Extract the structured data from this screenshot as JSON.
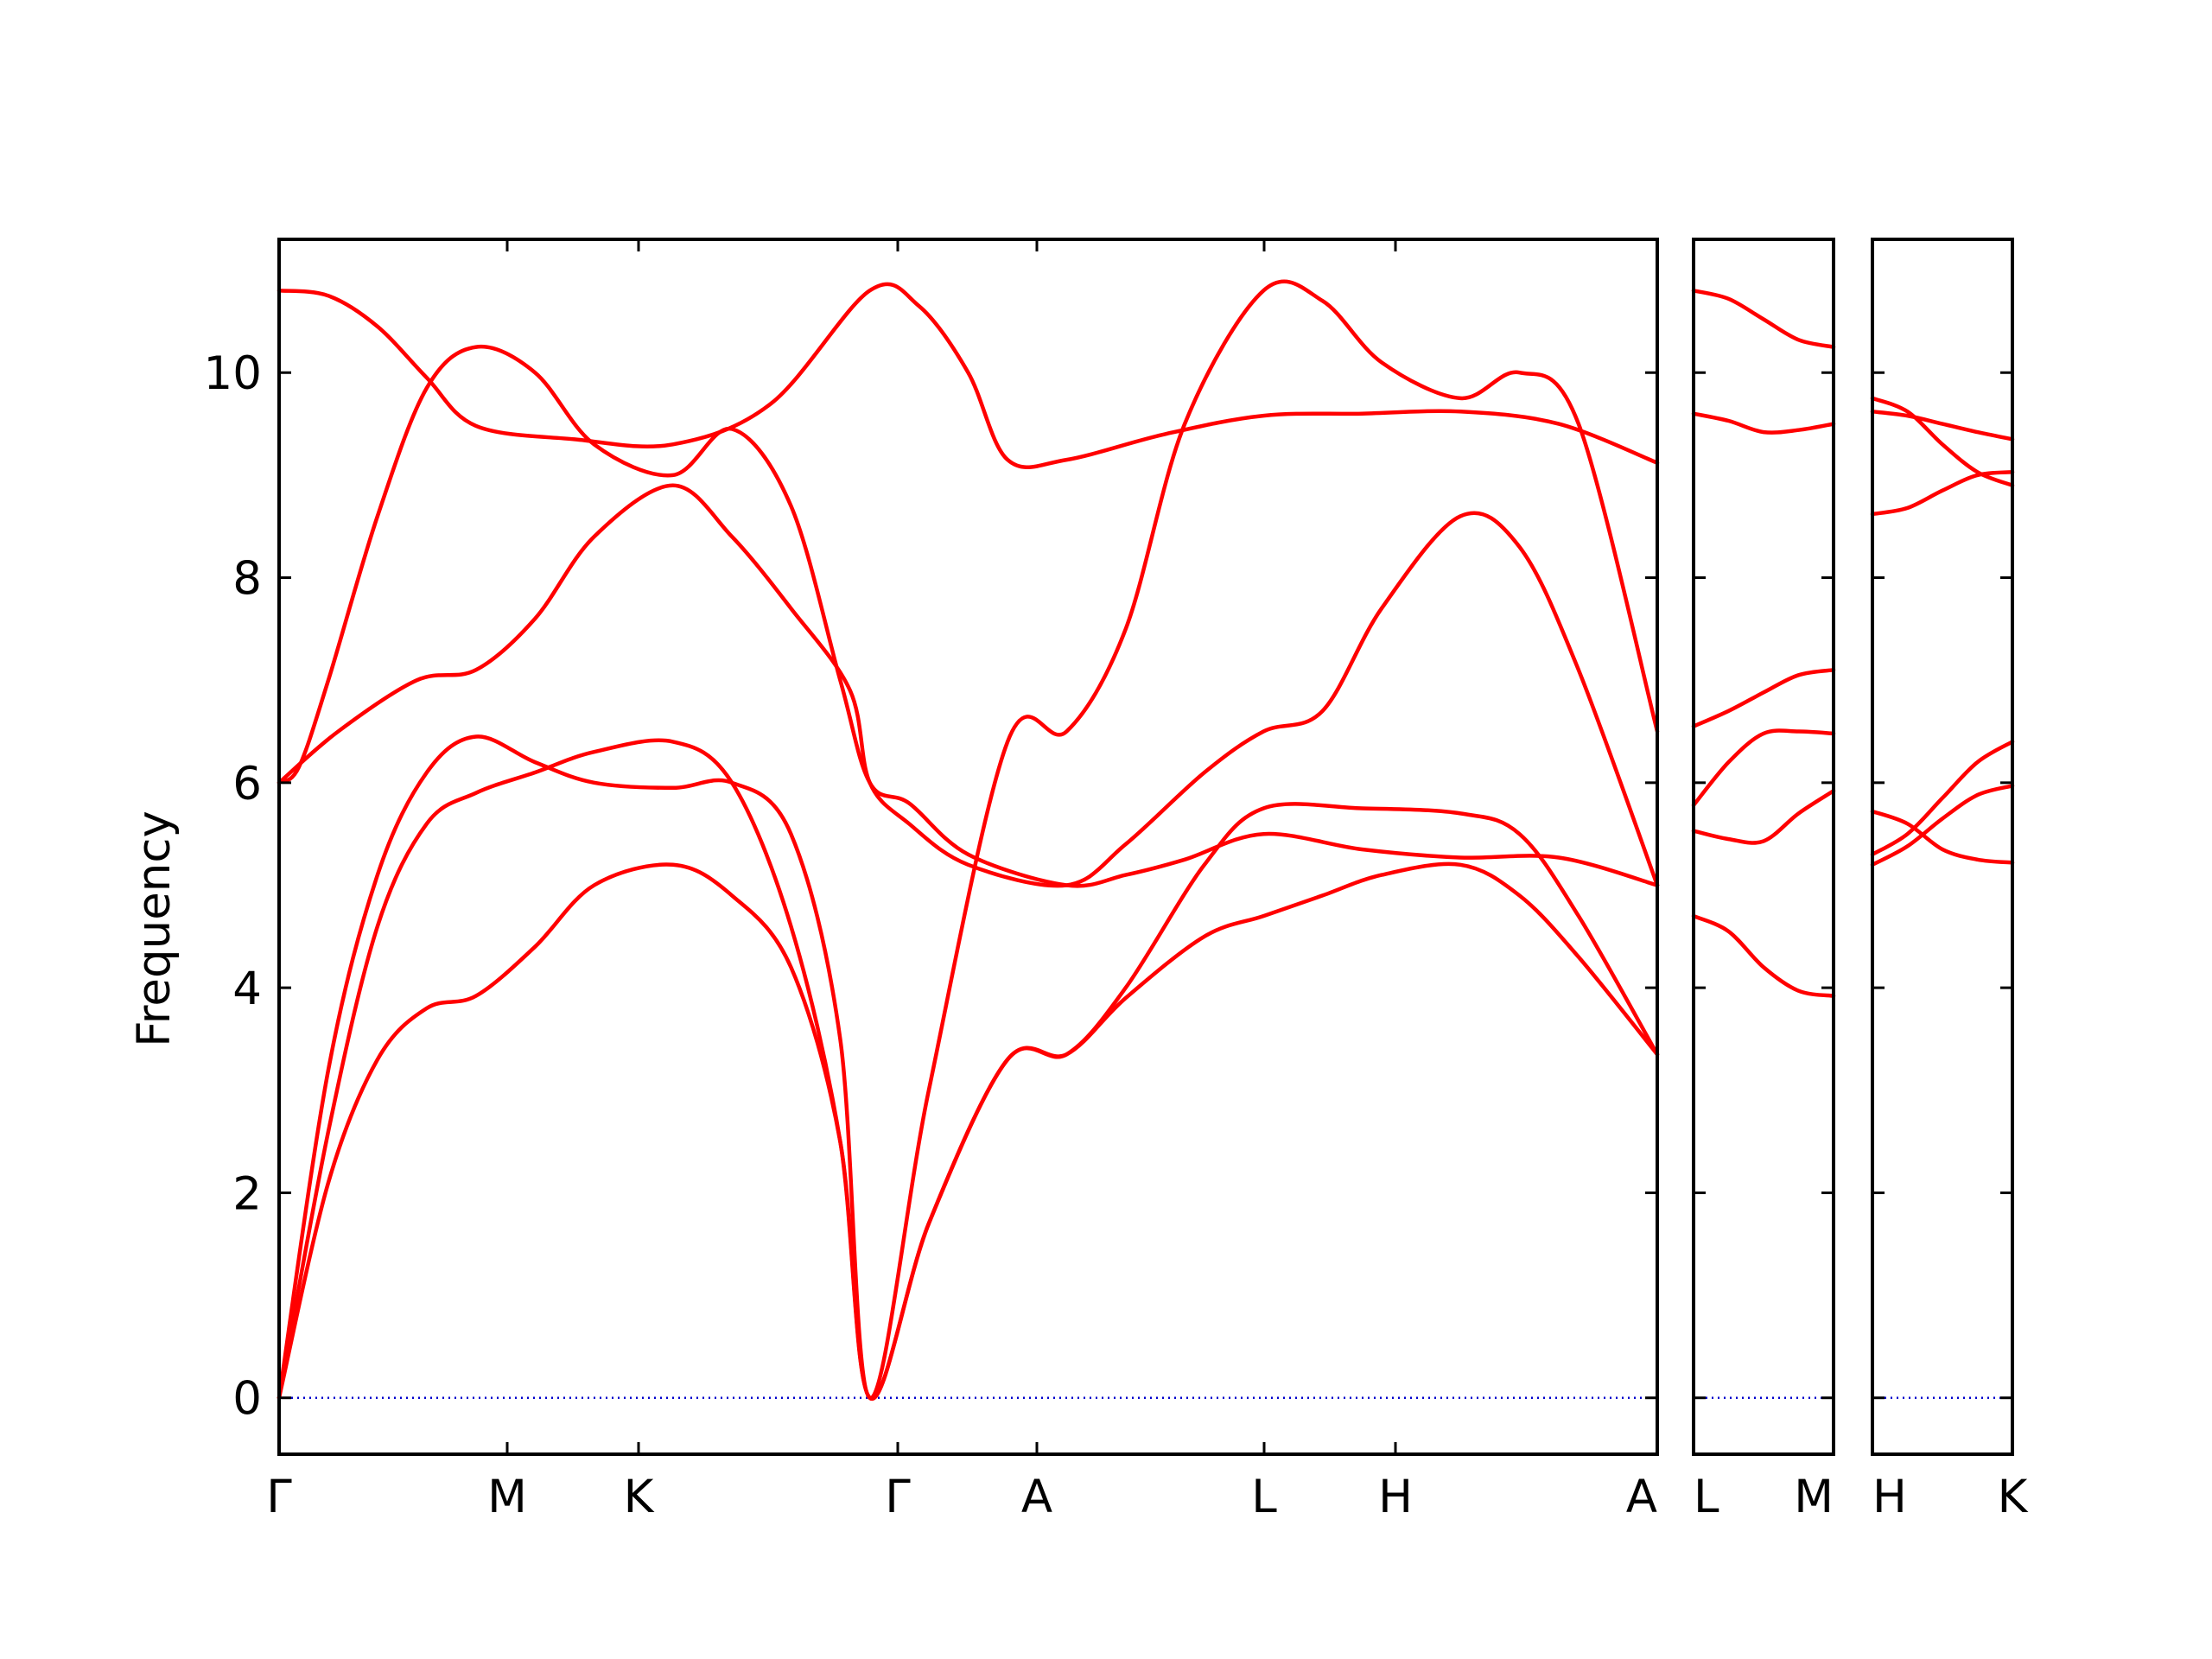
{
  "chart_data": {
    "type": "line",
    "ylabel": "Frequency",
    "ylim": [
      -0.55,
      11.3
    ],
    "y_ticks": [
      "0",
      "2",
      "4",
      "6",
      "8",
      "10"
    ],
    "grid": false,
    "colors": {
      "bands": "#ff0000",
      "zero_line": "#0000cc",
      "axes": "#000000"
    },
    "panels": [
      {
        "x_tick_labels": [
          "Γ",
          "M",
          "K",
          "Γ",
          "A",
          "L",
          "H",
          "A"
        ],
        "x_range": [
          0,
          7
        ],
        "series": [
          {
            "values": [
              [
                0,
                10.8
              ],
              [
                0.25,
                10.75
              ],
              [
                0.5,
                10.45
              ],
              [
                0.75,
                9.95
              ],
              [
                1,
                9.48
              ],
              [
                1.5,
                9.35
              ],
              [
                2,
                9.3
              ],
              [
                2.5,
                9.7
              ],
              [
                3,
                10.8
              ],
              [
                3.25,
                10.65
              ],
              [
                3.5,
                10.0
              ],
              [
                3.7,
                9.15
              ],
              [
                4,
                9.15
              ],
              [
                4.5,
                9.4
              ],
              [
                5,
                9.58
              ],
              [
                5.5,
                9.6
              ],
              [
                6,
                9.62
              ],
              [
                6.5,
                9.5
              ],
              [
                7,
                9.12
              ]
            ]
          },
          {
            "values": [
              [
                0,
                6.0
              ],
              [
                0.1,
                6.15
              ],
              [
                0.25,
                7.0
              ],
              [
                0.5,
                8.6
              ],
              [
                0.75,
                9.85
              ],
              [
                1,
                10.25
              ],
              [
                1.3,
                10.0
              ],
              [
                1.6,
                9.3
              ],
              [
                2,
                9.0
              ],
              [
                2.3,
                9.45
              ],
              [
                2.6,
                8.7
              ],
              [
                2.85,
                7.0
              ],
              [
                3,
                6.0
              ],
              [
                3.2,
                5.8
              ],
              [
                3.5,
                5.3
              ],
              [
                4,
                5.0
              ],
              [
                4.3,
                5.1
              ],
              [
                4.6,
                5.25
              ],
              [
                5,
                5.5
              ],
              [
                5.5,
                5.35
              ],
              [
                6,
                5.27
              ],
              [
                6.5,
                5.27
              ],
              [
                7,
                5.0
              ]
            ]
          },
          {
            "values": [
              [
                0,
                6.0
              ],
              [
                0.3,
                6.5
              ],
              [
                0.7,
                7.0
              ],
              [
                1,
                7.1
              ],
              [
                1.3,
                7.6
              ],
              [
                1.6,
                8.4
              ],
              [
                2,
                8.9
              ],
              [
                2.3,
                8.4
              ],
              [
                2.6,
                7.7
              ],
              [
                2.9,
                6.9
              ],
              [
                3,
                6.0
              ],
              [
                3.2,
                5.6
              ],
              [
                3.5,
                5.2
              ],
              [
                4,
                5.0
              ],
              [
                4.3,
                5.4
              ],
              [
                4.7,
                6.1
              ],
              [
                5,
                6.5
              ],
              [
                5.3,
                6.7
              ],
              [
                5.6,
                7.7
              ],
              [
                6,
                8.6
              ],
              [
                6.3,
                8.3
              ],
              [
                6.6,
                7.1
              ],
              [
                7,
                5.0
              ]
            ]
          },
          {
            "values": [
              [
                0,
                0
              ],
              [
                0.25,
                3.2
              ],
              [
                0.5,
                5.1
              ],
              [
                0.75,
                6.1
              ],
              [
                1,
                6.45
              ],
              [
                1.3,
                6.2
              ],
              [
                1.6,
                6.0
              ],
              [
                2,
                5.95
              ],
              [
                2.3,
                6.0
              ],
              [
                2.6,
                5.5
              ],
              [
                2.85,
                3.5
              ],
              [
                3,
                0
              ],
              [
                3.3,
                3.0
              ],
              [
                3.7,
                6.4
              ],
              [
                4,
                6.5
              ],
              [
                4.3,
                7.5
              ],
              [
                4.6,
                9.5
              ],
              [
                5,
                10.8
              ],
              [
                5.3,
                10.7
              ],
              [
                5.6,
                10.1
              ],
              [
                6,
                9.75
              ],
              [
                6.3,
                10.0
              ],
              [
                6.6,
                9.5
              ],
              [
                7,
                6.5
              ]
            ]
          },
          {
            "values": [
              [
                0,
                0
              ],
              [
                0.25,
                2.6
              ],
              [
                0.5,
                4.6
              ],
              [
                0.75,
                5.6
              ],
              [
                1,
                5.9
              ],
              [
                1.3,
                6.1
              ],
              [
                1.6,
                6.3
              ],
              [
                2,
                6.4
              ],
              [
                2.3,
                6.0
              ],
              [
                2.6,
                4.6
              ],
              [
                2.85,
                2.5
              ],
              [
                3,
                0
              ],
              [
                3.3,
                1.7
              ],
              [
                3.7,
                3.3
              ],
              [
                4,
                3.35
              ],
              [
                4.3,
                4.0
              ],
              [
                4.7,
                5.2
              ],
              [
                5,
                5.75
              ],
              [
                5.5,
                5.75
              ],
              [
                6,
                5.7
              ],
              [
                6.3,
                5.5
              ],
              [
                6.6,
                4.7
              ],
              [
                7,
                3.35
              ]
            ]
          },
          {
            "values": [
              [
                0,
                0
              ],
              [
                0.25,
                2.1
              ],
              [
                0.5,
                3.3
              ],
              [
                0.75,
                3.8
              ],
              [
                1,
                3.92
              ],
              [
                1.3,
                4.4
              ],
              [
                1.6,
                5.0
              ],
              [
                2,
                5.2
              ],
              [
                2.3,
                4.9
              ],
              [
                2.6,
                4.2
              ],
              [
                2.85,
                2.5
              ],
              [
                3,
                0
              ],
              [
                3.3,
                1.7
              ],
              [
                3.7,
                3.3
              ],
              [
                4,
                3.35
              ],
              [
                4.3,
                3.9
              ],
              [
                4.7,
                4.5
              ],
              [
                5,
                4.7
              ],
              [
                5.3,
                4.9
              ],
              [
                5.6,
                5.1
              ],
              [
                6,
                5.2
              ],
              [
                6.3,
                4.9
              ],
              [
                6.6,
                4.3
              ],
              [
                7,
                3.35
              ]
            ]
          }
        ]
      },
      {
        "x_tick_labels": [
          "L",
          "M"
        ],
        "x_range": [
          0,
          1
        ],
        "series": [
          {
            "values": [
              [
                0,
                10.8
              ],
              [
                0.25,
                10.72
              ],
              [
                0.5,
                10.52
              ],
              [
                0.75,
                10.32
              ],
              [
                1,
                10.25
              ]
            ]
          },
          {
            "values": [
              [
                0,
                9.6
              ],
              [
                0.25,
                9.53
              ],
              [
                0.5,
                9.42
              ],
              [
                0.75,
                9.44
              ],
              [
                1,
                9.5
              ]
            ]
          },
          {
            "values": [
              [
                0,
                6.55
              ],
              [
                0.25,
                6.7
              ],
              [
                0.5,
                6.88
              ],
              [
                0.75,
                7.05
              ],
              [
                1,
                7.1
              ]
            ]
          },
          {
            "values": [
              [
                0,
                5.78
              ],
              [
                0.25,
                6.2
              ],
              [
                0.5,
                6.48
              ],
              [
                0.75,
                6.5
              ],
              [
                1,
                6.48
              ]
            ]
          },
          {
            "values": [
              [
                0,
                5.53
              ],
              [
                0.25,
                5.45
              ],
              [
                0.5,
                5.43
              ],
              [
                0.75,
                5.7
              ],
              [
                1,
                5.92
              ]
            ]
          },
          {
            "values": [
              [
                0,
                4.7
              ],
              [
                0.25,
                4.55
              ],
              [
                0.5,
                4.2
              ],
              [
                0.75,
                3.97
              ],
              [
                1,
                3.92
              ]
            ]
          }
        ]
      },
      {
        "x_tick_labels": [
          "H",
          "K"
        ],
        "x_range": [
          0,
          1
        ],
        "series": [
          {
            "values": [
              [
                0,
                9.62
              ],
              [
                0.25,
                9.58
              ],
              [
                0.5,
                9.5
              ],
              [
                0.75,
                9.42
              ],
              [
                1,
                9.35
              ]
            ]
          },
          {
            "values": [
              [
                0,
                9.75
              ],
              [
                0.25,
                9.62
              ],
              [
                0.5,
                9.3
              ],
              [
                0.75,
                9.03
              ],
              [
                1,
                8.9
              ]
            ]
          },
          {
            "values": [
              [
                0,
                8.62
              ],
              [
                0.25,
                8.68
              ],
              [
                0.5,
                8.85
              ],
              [
                0.75,
                9.0
              ],
              [
                1,
                9.03
              ]
            ]
          },
          {
            "values": [
              [
                0,
                5.3
              ],
              [
                0.25,
                5.5
              ],
              [
                0.5,
                5.85
              ],
              [
                0.75,
                6.2
              ],
              [
                1,
                6.4
              ]
            ]
          },
          {
            "values": [
              [
                0,
                5.2
              ],
              [
                0.25,
                5.38
              ],
              [
                0.5,
                5.65
              ],
              [
                0.75,
                5.88
              ],
              [
                1,
                5.97
              ]
            ]
          },
          {
            "values": [
              [
                0,
                5.72
              ],
              [
                0.25,
                5.6
              ],
              [
                0.5,
                5.35
              ],
              [
                0.75,
                5.25
              ],
              [
                1,
                5.22
              ]
            ]
          }
        ]
      }
    ]
  }
}
